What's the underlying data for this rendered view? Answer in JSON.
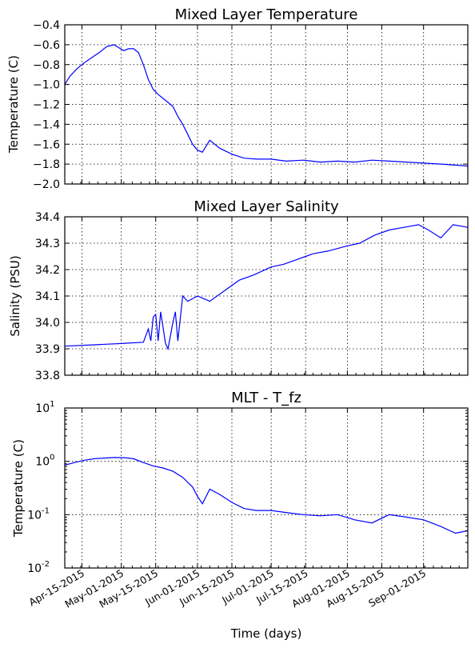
{
  "xlabel": "Time (days)",
  "chart_data": [
    {
      "type": "line",
      "title": "Mixed Layer Temperature",
      "xlabel": "",
      "ylabel": "Temperature (C)",
      "xlim": [
        "2015-04-08",
        "2015-09-19"
      ],
      "ylim": [
        -2.0,
        -0.4
      ],
      "yscale": "linear",
      "grid": true,
      "yticks": [
        -2.0,
        -1.8,
        -1.6,
        -1.4,
        -1.2,
        -1.0,
        -0.8,
        -0.6,
        -0.4
      ],
      "ytick_labels": [
        "−2.0",
        "−1.8",
        "−1.6",
        "−1.4",
        "−1.2",
        "−1.0",
        "−0.8",
        "−0.6",
        "−0.4"
      ],
      "series": [
        {
          "color": "#0000ff",
          "x": [
            "2015-04-08",
            "2015-04-10",
            "2015-04-13",
            "2015-04-16",
            "2015-04-19",
            "2015-04-22",
            "2015-04-25",
            "2015-04-28",
            "2015-04-30",
            "2015-05-02",
            "2015-05-04",
            "2015-05-06",
            "2015-05-08",
            "2015-05-10",
            "2015-05-12",
            "2015-05-14",
            "2015-05-16",
            "2015-05-18",
            "2015-05-20",
            "2015-05-22",
            "2015-05-24",
            "2015-05-26",
            "2015-05-28",
            "2015-05-30",
            "2015-06-01",
            "2015-06-03",
            "2015-06-06",
            "2015-06-10",
            "2015-06-15",
            "2015-06-20",
            "2015-06-25",
            "2015-07-01",
            "2015-07-07",
            "2015-07-14",
            "2015-07-21",
            "2015-07-28",
            "2015-08-04",
            "2015-08-11",
            "2015-08-18",
            "2015-08-25",
            "2015-09-01",
            "2015-09-08",
            "2015-09-14",
            "2015-09-19"
          ],
          "y": [
            -1.0,
            -0.92,
            -0.84,
            -0.78,
            -0.73,
            -0.68,
            -0.62,
            -0.6,
            -0.63,
            -0.66,
            -0.64,
            -0.64,
            -0.68,
            -0.8,
            -0.95,
            -1.05,
            -1.1,
            -1.14,
            -1.18,
            -1.22,
            -1.32,
            -1.4,
            -1.5,
            -1.6,
            -1.66,
            -1.68,
            -1.56,
            -1.64,
            -1.7,
            -1.74,
            -1.75,
            -1.75,
            -1.77,
            -1.76,
            -1.78,
            -1.77,
            -1.78,
            -1.76,
            -1.77,
            -1.78,
            -1.79,
            -1.8,
            -1.81,
            -1.82
          ]
        }
      ]
    },
    {
      "type": "line",
      "title": "Mixed Layer Salinity",
      "xlabel": "",
      "ylabel": "Salinity (PSU)",
      "xlim": [
        "2015-04-08",
        "2015-09-19"
      ],
      "ylim": [
        33.8,
        34.4
      ],
      "yscale": "linear",
      "grid": true,
      "yticks": [
        33.8,
        33.9,
        34.0,
        34.1,
        34.2,
        34.3,
        34.4
      ],
      "ytick_labels": [
        "33.8",
        "33.9",
        "34.0",
        "34.1",
        "34.2",
        "34.3",
        "34.4"
      ],
      "series": [
        {
          "color": "#0000ff",
          "x": [
            "2015-04-08",
            "2015-04-20",
            "2015-05-01",
            "2015-05-10",
            "2015-05-12",
            "2015-05-13",
            "2015-05-14",
            "2015-05-15",
            "2015-05-16",
            "2015-05-17",
            "2015-05-19",
            "2015-05-20",
            "2015-05-22",
            "2015-05-23",
            "2015-05-24",
            "2015-05-26",
            "2015-05-28",
            "2015-06-01",
            "2015-06-06",
            "2015-06-12",
            "2015-06-18",
            "2015-06-24",
            "2015-07-01",
            "2015-07-06",
            "2015-07-12",
            "2015-07-18",
            "2015-07-24",
            "2015-08-01",
            "2015-08-06",
            "2015-08-12",
            "2015-08-18",
            "2015-08-24",
            "2015-08-30",
            "2015-09-03",
            "2015-09-08",
            "2015-09-13",
            "2015-09-19"
          ],
          "y": [
            33.91,
            33.915,
            33.92,
            33.925,
            33.975,
            33.93,
            34.02,
            34.03,
            33.93,
            34.04,
            33.92,
            33.9,
            34.0,
            34.04,
            33.93,
            34.1,
            34.08,
            34.1,
            34.08,
            34.12,
            34.16,
            34.18,
            34.21,
            34.22,
            34.24,
            34.26,
            34.27,
            34.29,
            34.3,
            34.33,
            34.35,
            34.36,
            34.37,
            34.35,
            34.32,
            34.37,
            34.36
          ]
        }
      ]
    },
    {
      "type": "line",
      "title": "MLT - T_fz",
      "xlabel": "Time (days)",
      "ylabel": "Temperature (C)",
      "xlim": [
        "2015-04-08",
        "2015-09-19"
      ],
      "ylim": [
        0.01,
        10
      ],
      "yscale": "log",
      "grid": true,
      "yticks": [
        0.01,
        0.1,
        1,
        10
      ],
      "ytick_labels": [
        "10",
        "10",
        "10",
        "10"
      ],
      "ytick_exponents": [
        "-2",
        "-1",
        "0",
        "1"
      ],
      "series": [
        {
          "color": "#0000ff",
          "x": [
            "2015-04-08",
            "2015-04-12",
            "2015-04-16",
            "2015-04-20",
            "2015-04-24",
            "2015-04-28",
            "2015-05-02",
            "2015-05-06",
            "2015-05-10",
            "2015-05-14",
            "2015-05-18",
            "2015-05-22",
            "2015-05-26",
            "2015-05-30",
            "2015-06-01",
            "2015-06-03",
            "2015-06-06",
            "2015-06-10",
            "2015-06-15",
            "2015-06-20",
            "2015-06-25",
            "2015-07-01",
            "2015-07-07",
            "2015-07-14",
            "2015-07-21",
            "2015-07-28",
            "2015-08-04",
            "2015-08-11",
            "2015-08-18",
            "2015-08-25",
            "2015-09-01",
            "2015-09-08",
            "2015-09-14",
            "2015-09-19"
          ],
          "y": [
            0.85,
            0.95,
            1.05,
            1.12,
            1.15,
            1.18,
            1.17,
            1.12,
            0.95,
            0.82,
            0.75,
            0.65,
            0.5,
            0.33,
            0.22,
            0.16,
            0.3,
            0.24,
            0.17,
            0.13,
            0.12,
            0.12,
            0.11,
            0.1,
            0.095,
            0.1,
            0.08,
            0.07,
            0.1,
            0.09,
            0.08,
            0.06,
            0.045,
            0.05
          ]
        }
      ]
    }
  ],
  "x_tick_labels": [
    "Apr-15-2015",
    "May-01-2015",
    "May-15-2015",
    "Jun-01-2015",
    "Jun-15-2015",
    "Jul-01-2015",
    "Jul-15-2015",
    "Aug-01-2015",
    "Aug-15-2015",
    "Sep-01-2015"
  ],
  "x_tick_dates": [
    "2015-04-15",
    "2015-05-01",
    "2015-05-15",
    "2015-06-01",
    "2015-06-15",
    "2015-07-01",
    "2015-07-15",
    "2015-08-01",
    "2015-08-15",
    "2015-09-01"
  ]
}
